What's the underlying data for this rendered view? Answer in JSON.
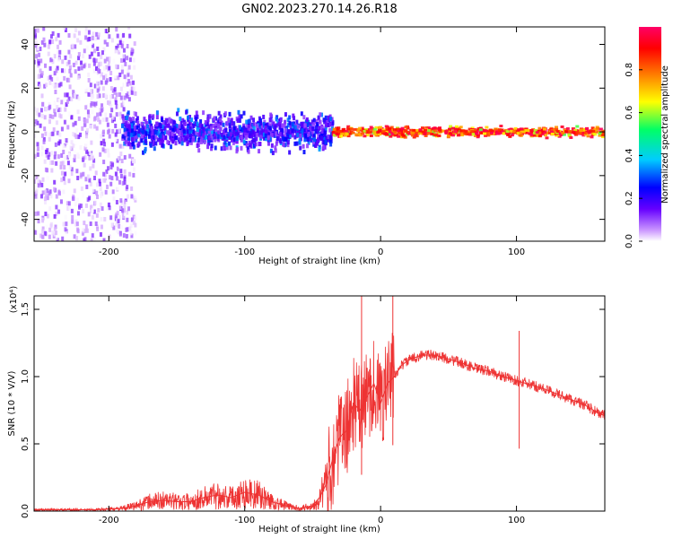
{
  "title": "GN02.2023.270.14.26.R18",
  "colors": {
    "snr_line": "#ee3333",
    "spectrogram_palette": [
      "#ffffff",
      "#cc99ff",
      "#6600ff",
      "#0000ff",
      "#00ccff",
      "#00ff66",
      "#ffff00",
      "#ff6600",
      "#ff0000",
      "#ff0066"
    ],
    "axis": "#000000"
  },
  "chart_data": [
    {
      "type": "heatmap",
      "title": "",
      "xlabel": "Height of straight line (km)",
      "ylabel": "Frequency (Hz)",
      "xlim": [
        -255,
        165
      ],
      "ylim": [
        -50,
        48
      ],
      "xticks": [
        -200,
        -100,
        0,
        100
      ],
      "yticks": [
        -40,
        -20,
        0,
        20,
        40
      ],
      "xtick_labels": [
        "-200",
        "-100",
        "0",
        "100"
      ],
      "ytick_labels": [
        "-40",
        "-20",
        "0",
        "20",
        "40"
      ],
      "grid": false,
      "colorbar": {
        "label": "Normalized spectral amplitude",
        "range": [
          0.0,
          1.0
        ],
        "ticks": [
          0.0,
          0.2,
          0.4,
          0.6,
          0.8
        ],
        "tick_labels": [
          "0.0",
          "0.2",
          "0.4",
          "0.6",
          "0.8"
        ],
        "colormap": "white-purple-blue-cyan-green-yellow-red-magenta"
      },
      "regions": [
        {
          "x_range": [
            -255,
            -180
          ],
          "freq_range": [
            -50,
            48
          ],
          "amplitude_range": [
            0.0,
            0.15
          ]
        },
        {
          "x_range": [
            -190,
            -35
          ],
          "freq_range": [
            -12,
            10
          ],
          "amplitude_range": [
            0.1,
            0.35
          ]
        },
        {
          "x_range": [
            -35,
            165
          ],
          "freq_range": [
            -3,
            3
          ],
          "amplitude_range": [
            0.5,
            1.0
          ]
        }
      ]
    },
    {
      "type": "line",
      "title": "",
      "xlabel": "Height of straight line (km)",
      "ylabel": "SNR (10 * V/V)",
      "yscale_label": "(x10⁴)",
      "xlim": [
        -255,
        165
      ],
      "ylim": [
        0.0,
        1.6
      ],
      "xticks": [
        -200,
        -100,
        0,
        100
      ],
      "yticks": [
        0.0,
        0.5,
        1.0,
        1.5
      ],
      "xtick_labels": [
        "-200",
        "-100",
        "0",
        "100"
      ],
      "ytick_labels": [
        "0.0",
        "0.5",
        "1.0",
        "1.5"
      ],
      "grid": false,
      "series": [
        {
          "x": [
            -255,
            -230,
            -210,
            -190,
            -180,
            -170,
            -160,
            -150,
            -140,
            -130,
            -120,
            -110,
            -100,
            -90,
            -80,
            -70,
            -60,
            -50,
            -45,
            -40,
            -35,
            -30,
            -25,
            -20,
            -15,
            -10,
            -5,
            0,
            5,
            10,
            15,
            20,
            30,
            40,
            50,
            60,
            70,
            80,
            90,
            100,
            110,
            120,
            130,
            140,
            150,
            160,
            165
          ],
          "y": [
            0.01,
            0.01,
            0.01,
            0.02,
            0.04,
            0.07,
            0.08,
            0.07,
            0.07,
            0.1,
            0.12,
            0.1,
            0.14,
            0.12,
            0.07,
            0.04,
            0.02,
            0.04,
            0.1,
            0.2,
            0.4,
            0.55,
            0.6,
            0.8,
            0.75,
            0.85,
            0.95,
            0.8,
            0.95,
            1.0,
            1.08,
            1.12,
            1.16,
            1.16,
            1.13,
            1.1,
            1.06,
            1.04,
            1.0,
            0.97,
            0.94,
            0.91,
            0.87,
            0.83,
            0.79,
            0.73,
            0.71
          ]
        }
      ],
      "annotations": [
        {
          "x": -14,
          "y": 1.6,
          "text": ""
        },
        {
          "x": 9,
          "y": 1.6,
          "text": ""
        },
        {
          "x": 102,
          "y": 1.34,
          "text": ""
        }
      ]
    }
  ]
}
